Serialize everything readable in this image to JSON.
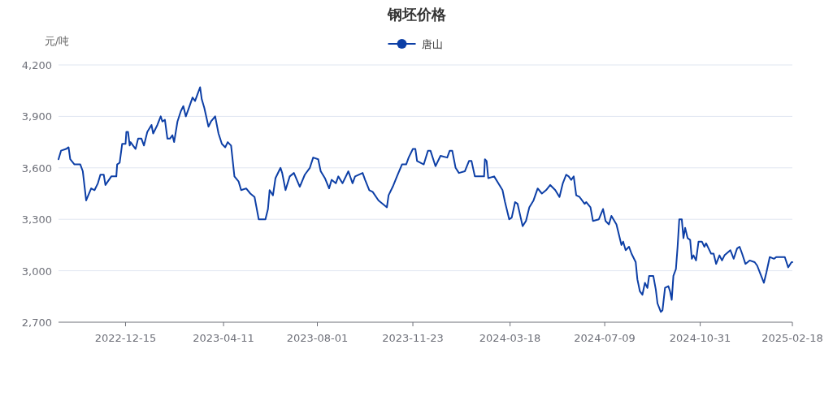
{
  "chart_data": {
    "type": "line",
    "title": "钢坯价格",
    "ylabel": "元/吨",
    "legend": "top",
    "grid": "y",
    "xlim": [
      "2022-09-26",
      "2025-02-18"
    ],
    "xticks": [
      "2022-12-15",
      "2023-04-11",
      "2023-08-01",
      "2023-11-23",
      "2024-03-18",
      "2024-07-09",
      "2024-10-31",
      "2025-02-18"
    ],
    "ylim": [
      2700,
      4200
    ],
    "yticks": [
      {
        "value": 2700,
        "label": "2,700"
      },
      {
        "value": 3000,
        "label": "3,000"
      },
      {
        "value": 3300,
        "label": "3,300"
      },
      {
        "value": 3600,
        "label": "3,600"
      },
      {
        "value": 3900,
        "label": "3,900"
      },
      {
        "value": 4200,
        "label": "4,200"
      }
    ],
    "x": [
      "2022-09-26",
      "2022-09-29",
      "2022-10-05",
      "2022-10-08",
      "2022-10-10",
      "2022-10-15",
      "2022-10-22",
      "2022-10-25",
      "2022-10-29",
      "2022-11-04",
      "2022-11-08",
      "2022-11-12",
      "2022-11-15",
      "2022-11-19",
      "2022-11-21",
      "2022-11-28",
      "2022-12-04",
      "2022-12-05",
      "2022-12-08",
      "2022-12-11",
      "2022-12-15",
      "2022-12-16",
      "2022-12-18",
      "2022-12-20",
      "2022-12-21",
      "2022-12-27",
      "2022-12-30",
      "2023-01-03",
      "2023-01-06",
      "2023-01-10",
      "2023-01-15",
      "2023-01-17",
      "2023-01-22",
      "2023-01-26",
      "2023-01-28",
      "2023-01-31",
      "2023-02-03",
      "2023-02-06",
      "2023-02-09",
      "2023-02-11",
      "2023-02-15",
      "2023-02-19",
      "2023-02-22",
      "2023-02-25",
      "2023-02-28",
      "2023-03-05",
      "2023-03-08",
      "2023-03-11",
      "2023-03-14",
      "2023-03-16",
      "2023-03-19",
      "2023-03-24",
      "2023-03-27",
      "2023-04-01",
      "2023-04-05",
      "2023-04-09",
      "2023-04-13",
      "2023-04-16",
      "2023-04-20",
      "2023-04-24",
      "2023-04-29",
      "2023-05-02",
      "2023-05-08",
      "2023-05-13",
      "2023-05-18",
      "2023-05-23",
      "2023-05-31",
      "2023-06-03",
      "2023-06-05",
      "2023-06-09",
      "2023-06-12",
      "2023-06-18",
      "2023-06-20",
      "2023-06-24",
      "2023-06-29",
      "2023-07-04",
      "2023-07-11",
      "2023-07-17",
      "2023-07-23",
      "2023-07-27",
      "2023-08-02",
      "2023-08-05",
      "2023-08-10",
      "2023-08-15",
      "2023-08-18",
      "2023-08-23",
      "2023-08-26",
      "2023-08-31",
      "2023-09-07",
      "2023-09-12",
      "2023-09-15",
      "2023-09-24",
      "2023-09-27",
      "2023-10-02",
      "2023-10-06",
      "2023-10-13",
      "2023-10-23",
      "2023-10-25",
      "2023-10-30",
      "2023-11-04",
      "2023-11-10",
      "2023-11-15",
      "2023-11-18",
      "2023-11-23",
      "2023-11-26",
      "2023-11-28",
      "2023-12-06",
      "2023-12-11",
      "2023-12-14",
      "2023-12-20",
      "2023-12-26",
      "2024-01-03",
      "2024-01-06",
      "2024-01-09",
      "2024-01-13",
      "2024-01-17",
      "2024-01-24",
      "2024-01-29",
      "2024-02-01",
      "2024-02-05",
      "2024-02-16",
      "2024-02-17",
      "2024-02-19",
      "2024-02-21",
      "2024-02-28",
      "2024-03-04",
      "2024-03-09",
      "2024-03-12",
      "2024-03-17",
      "2024-03-20",
      "2024-03-24",
      "2024-03-27",
      "2024-04-02",
      "2024-04-06",
      "2024-04-10",
      "2024-04-15",
      "2024-04-20",
      "2024-04-25",
      "2024-04-30",
      "2024-05-05",
      "2024-05-11",
      "2024-05-16",
      "2024-05-20",
      "2024-05-24",
      "2024-05-27",
      "2024-05-30",
      "2024-06-02",
      "2024-06-05",
      "2024-06-09",
      "2024-06-15",
      "2024-06-17",
      "2024-06-22",
      "2024-06-25",
      "2024-07-02",
      "2024-07-07",
      "2024-07-10",
      "2024-07-14",
      "2024-07-17",
      "2024-07-23",
      "2024-07-29",
      "2024-07-31",
      "2024-08-03",
      "2024-08-07",
      "2024-08-10",
      "2024-08-15",
      "2024-08-17",
      "2024-08-20",
      "2024-08-23",
      "2024-08-26",
      "2024-08-29",
      "2024-08-31",
      "2024-09-05",
      "2024-09-08",
      "2024-09-10",
      "2024-09-14",
      "2024-09-16",
      "2024-09-19",
      "2024-09-23",
      "2024-09-25",
      "2024-09-27",
      "2024-09-29",
      "2024-10-02",
      "2024-10-04",
      "2024-10-06",
      "2024-10-09",
      "2024-10-11",
      "2024-10-13",
      "2024-10-16",
      "2024-10-19",
      "2024-10-21",
      "2024-10-23",
      "2024-10-26",
      "2024-10-29",
      "2024-11-02",
      "2024-11-05",
      "2024-11-07",
      "2024-11-10",
      "2024-11-13",
      "2024-11-16",
      "2024-11-19",
      "2024-11-23",
      "2024-11-26",
      "2024-11-29",
      "2024-12-06",
      "2024-12-10",
      "2024-12-14",
      "2024-12-17",
      "2024-12-20",
      "2024-12-24",
      "2024-12-29",
      "2025-01-04",
      "2025-01-07",
      "2025-01-11",
      "2025-01-15",
      "2025-01-18",
      "2025-01-22",
      "2025-01-27",
      "2025-01-30",
      "2025-02-03",
      "2025-02-09",
      "2025-02-11",
      "2025-02-13",
      "2025-02-17",
      "2025-02-18"
    ],
    "series": [
      {
        "name": "唐山",
        "color": "#0d3fa6",
        "values": [
          3650,
          3700,
          3710,
          3720,
          3650,
          3620,
          3620,
          3580,
          3410,
          3480,
          3470,
          3510,
          3560,
          3560,
          3500,
          3550,
          3550,
          3620,
          3630,
          3740,
          3740,
          3810,
          3810,
          3730,
          3750,
          3710,
          3770,
          3770,
          3730,
          3810,
          3850,
          3800,
          3850,
          3900,
          3870,
          3880,
          3770,
          3770,
          3790,
          3750,
          3870,
          3930,
          3960,
          3900,
          3940,
          4010,
          3990,
          4030,
          4070,
          4000,
          3950,
          3840,
          3870,
          3900,
          3800,
          3740,
          3720,
          3750,
          3730,
          3550,
          3520,
          3470,
          3480,
          3450,
          3430,
          3300,
          3300,
          3360,
          3470,
          3440,
          3540,
          3600,
          3570,
          3470,
          3550,
          3570,
          3490,
          3560,
          3600,
          3660,
          3650,
          3580,
          3540,
          3480,
          3530,
          3510,
          3550,
          3510,
          3580,
          3510,
          3550,
          3570,
          3530,
          3470,
          3460,
          3410,
          3370,
          3440,
          3490,
          3550,
          3620,
          3620,
          3660,
          3710,
          3710,
          3640,
          3620,
          3700,
          3700,
          3610,
          3670,
          3660,
          3700,
          3700,
          3600,
          3570,
          3580,
          3640,
          3640,
          3550,
          3550,
          3650,
          3640,
          3540,
          3550,
          3510,
          3470,
          3400,
          3300,
          3310,
          3400,
          3390,
          3260,
          3290,
          3370,
          3410,
          3480,
          3450,
          3470,
          3500,
          3470,
          3430,
          3510,
          3560,
          3550,
          3530,
          3550,
          3440,
          3430,
          3390,
          3400,
          3370,
          3290,
          3300,
          3360,
          3290,
          3270,
          3320,
          3270,
          3150,
          3170,
          3120,
          3140,
          3100,
          3050,
          2950,
          2880,
          2860,
          2930,
          2900,
          2970,
          2970,
          2890,
          2810,
          2760,
          2770,
          2900,
          2910,
          2880,
          2830,
          2970,
          3010,
          3140,
          3300,
          3300,
          3190,
          3250,
          3190,
          3180,
          3070,
          3090,
          3060,
          3170,
          3170,
          3140,
          3160,
          3130,
          3100,
          3100,
          3040,
          3090,
          3060,
          3090,
          3120,
          3070,
          3130,
          3140,
          3100,
          3040,
          3060,
          3050,
          3030,
          2980,
          2930,
          2990,
          3080,
          3070,
          3080,
          3080,
          3080,
          3050,
          3020,
          3050,
          3050
        ]
      }
    ]
  }
}
